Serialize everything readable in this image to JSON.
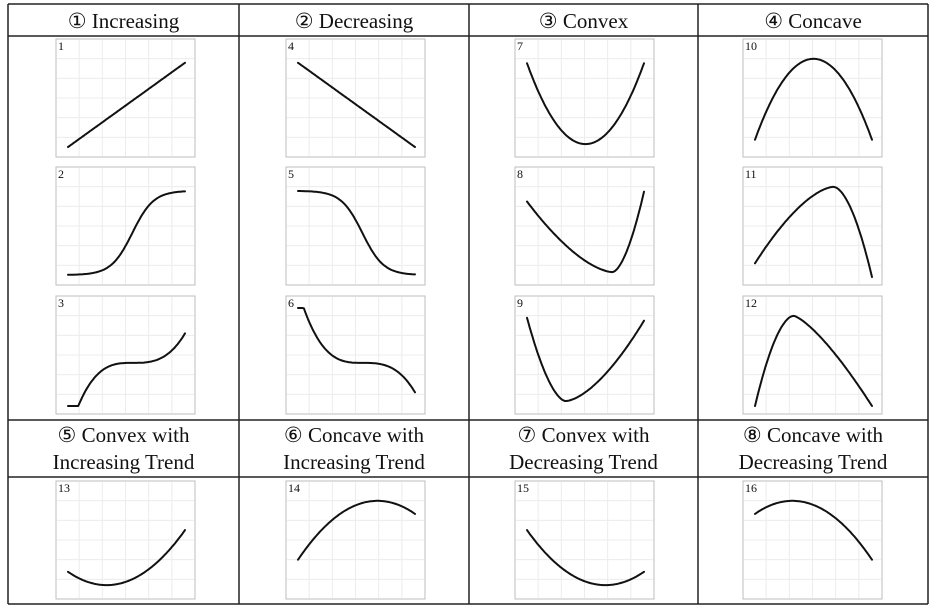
{
  "categories": [
    {
      "id": 1,
      "lines": [
        "① Increasing"
      ]
    },
    {
      "id": 2,
      "lines": [
        "② Decreasing"
      ]
    },
    {
      "id": 3,
      "lines": [
        "③ Convex"
      ]
    },
    {
      "id": 4,
      "lines": [
        "④ Concave"
      ]
    },
    {
      "id": 5,
      "lines": [
        "⑤ Convex with",
        "Increasing Trend"
      ]
    },
    {
      "id": 6,
      "lines": [
        "⑥ Concave with",
        "Increasing Trend"
      ]
    },
    {
      "id": 7,
      "lines": [
        "⑦ Convex with",
        "Decreasing Trend"
      ]
    },
    {
      "id": 8,
      "lines": [
        "⑧ Concave with",
        "Decreasing Trend"
      ]
    }
  ],
  "panels": [
    {
      "label": "1",
      "category": 1,
      "shape": "linear-up"
    },
    {
      "label": "2",
      "category": 1,
      "shape": "sigmoid-up"
    },
    {
      "label": "3",
      "category": 1,
      "shape": "cubic-up"
    },
    {
      "label": "4",
      "category": 2,
      "shape": "linear-down"
    },
    {
      "label": "5",
      "category": 2,
      "shape": "sigmoid-down"
    },
    {
      "label": "6",
      "category": 2,
      "shape": "cubic-down"
    },
    {
      "label": "7",
      "category": 3,
      "shape": "u-symmetric"
    },
    {
      "label": "8",
      "category": 3,
      "shape": "u-min-right"
    },
    {
      "label": "9",
      "category": 3,
      "shape": "u-min-left"
    },
    {
      "label": "10",
      "category": 4,
      "shape": "cap-symmetric"
    },
    {
      "label": "11",
      "category": 4,
      "shape": "cap-max-right"
    },
    {
      "label": "12",
      "category": 4,
      "shape": "cap-max-left"
    },
    {
      "label": "13",
      "category": 5,
      "shape": "convex-increasing"
    },
    {
      "label": "14",
      "category": 6,
      "shape": "concave-increasing"
    },
    {
      "label": "15",
      "category": 7,
      "shape": "convex-decreasing"
    },
    {
      "label": "16",
      "category": 8,
      "shape": "concave-decreasing"
    }
  ]
}
